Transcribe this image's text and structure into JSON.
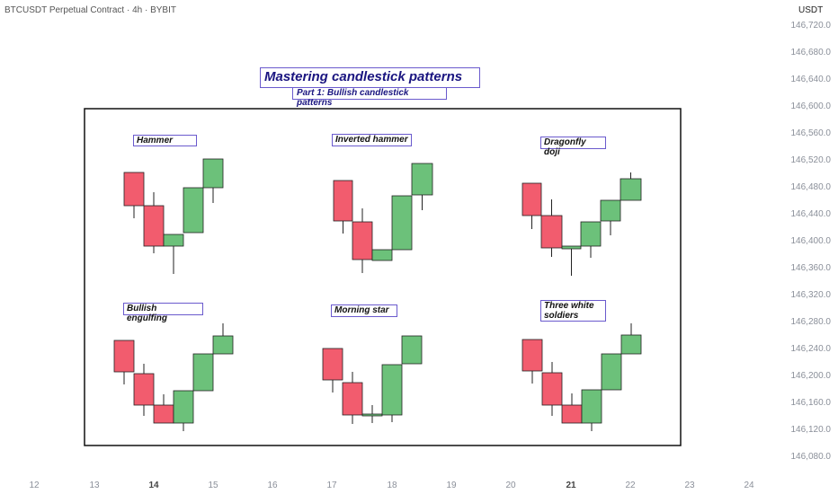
{
  "header": {
    "symbol": "BTCUSDT Perpetual Contract · 4h · BYBIT",
    "currency": "USDT"
  },
  "title": "Mastering candlestick patterns",
  "subtitle": "Part 1: Bullish candlestick patterns",
  "patterns": [
    "Hammer",
    "Inverted hammer",
    "Dragonfly doji",
    "Bullish engulfing",
    "Morning star",
    "Three white soldiers"
  ],
  "price_axis": [
    "146,720.0",
    "146,680.0",
    "146,640.0",
    "146,600.0",
    "146,560.0",
    "146,520.0",
    "146,480.0",
    "146,440.0",
    "146,400.0",
    "146,360.0",
    "146,320.0",
    "146,280.0",
    "146,240.0",
    "146,200.0",
    "146,160.0",
    "146,120.0",
    "146,080.0"
  ],
  "time_axis": [
    "12",
    "13",
    "14",
    "15",
    "16",
    "17",
    "18",
    "19",
    "20",
    "21",
    "22",
    "23",
    "24"
  ]
}
